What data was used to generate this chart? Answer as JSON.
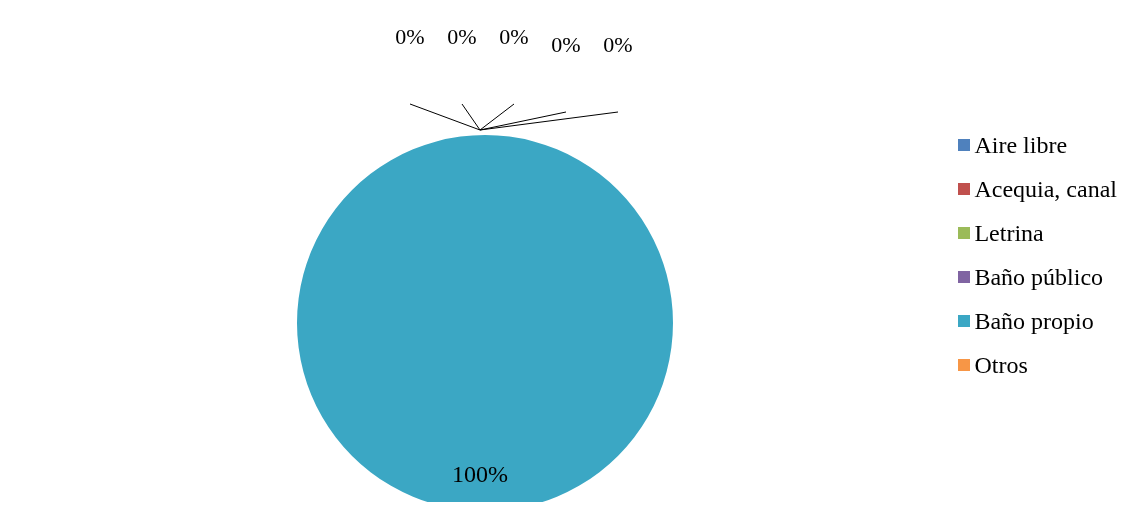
{
  "chart_data": {
    "type": "pie",
    "categories": [
      "Aire libre",
      "Acequia, canal",
      "Letrina",
      "Baño público",
      "Baño propio",
      "Otros"
    ],
    "values": [
      0,
      0,
      0,
      0,
      100,
      0
    ],
    "value_labels": [
      "0%",
      "0%",
      "0%",
      "0%",
      "100%",
      "0%"
    ],
    "colors": [
      "#4f81bd",
      "#c0504d",
      "#9bbb59",
      "#8064a2",
      "#3ba7c4",
      "#f79646"
    ],
    "legend": "right"
  }
}
